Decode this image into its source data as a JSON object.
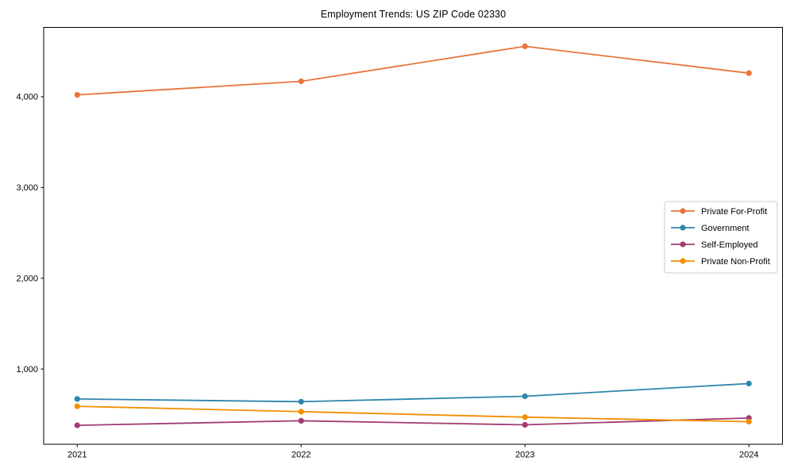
{
  "page": {
    "background": "#ffffff"
  },
  "chart_data": {
    "type": "line",
    "title": "Employment Trends: US ZIP Code 02330",
    "xlabel": "",
    "ylabel": "",
    "x": [
      2021,
      2022,
      2023,
      2024
    ],
    "x_tick_labels": [
      "2021",
      "2022",
      "2023",
      "2024"
    ],
    "y_ticks": [
      1000,
      2000,
      3000,
      4000
    ],
    "y_tick_labels": [
      "1,000",
      "2,000",
      "3,000",
      "4,000"
    ],
    "xlim": [
      2020.85,
      2024.15
    ],
    "ylim": [
      171,
      4764
    ],
    "grid": false,
    "marker": "circle",
    "axis_color": "#000000",
    "tick_label_color": "#000000",
    "legend": {
      "position": "center-right",
      "background": "#ffffff",
      "border_color": "#cccccc"
    },
    "series": [
      {
        "name": "Private For-Profit",
        "color": "#E8743B",
        "values": [
          4020,
          4170,
          4555,
          4260
        ]
      },
      {
        "name": "Government",
        "color": "#2E86AB",
        "values": [
          670,
          640,
          700,
          840
        ]
      },
      {
        "name": "Self-Employed",
        "color": "#A23B72",
        "values": [
          380,
          430,
          385,
          460
        ]
      },
      {
        "name": "Private Non-Profit",
        "color": "#F18F01",
        "values": [
          590,
          530,
          470,
          420
        ]
      }
    ]
  }
}
